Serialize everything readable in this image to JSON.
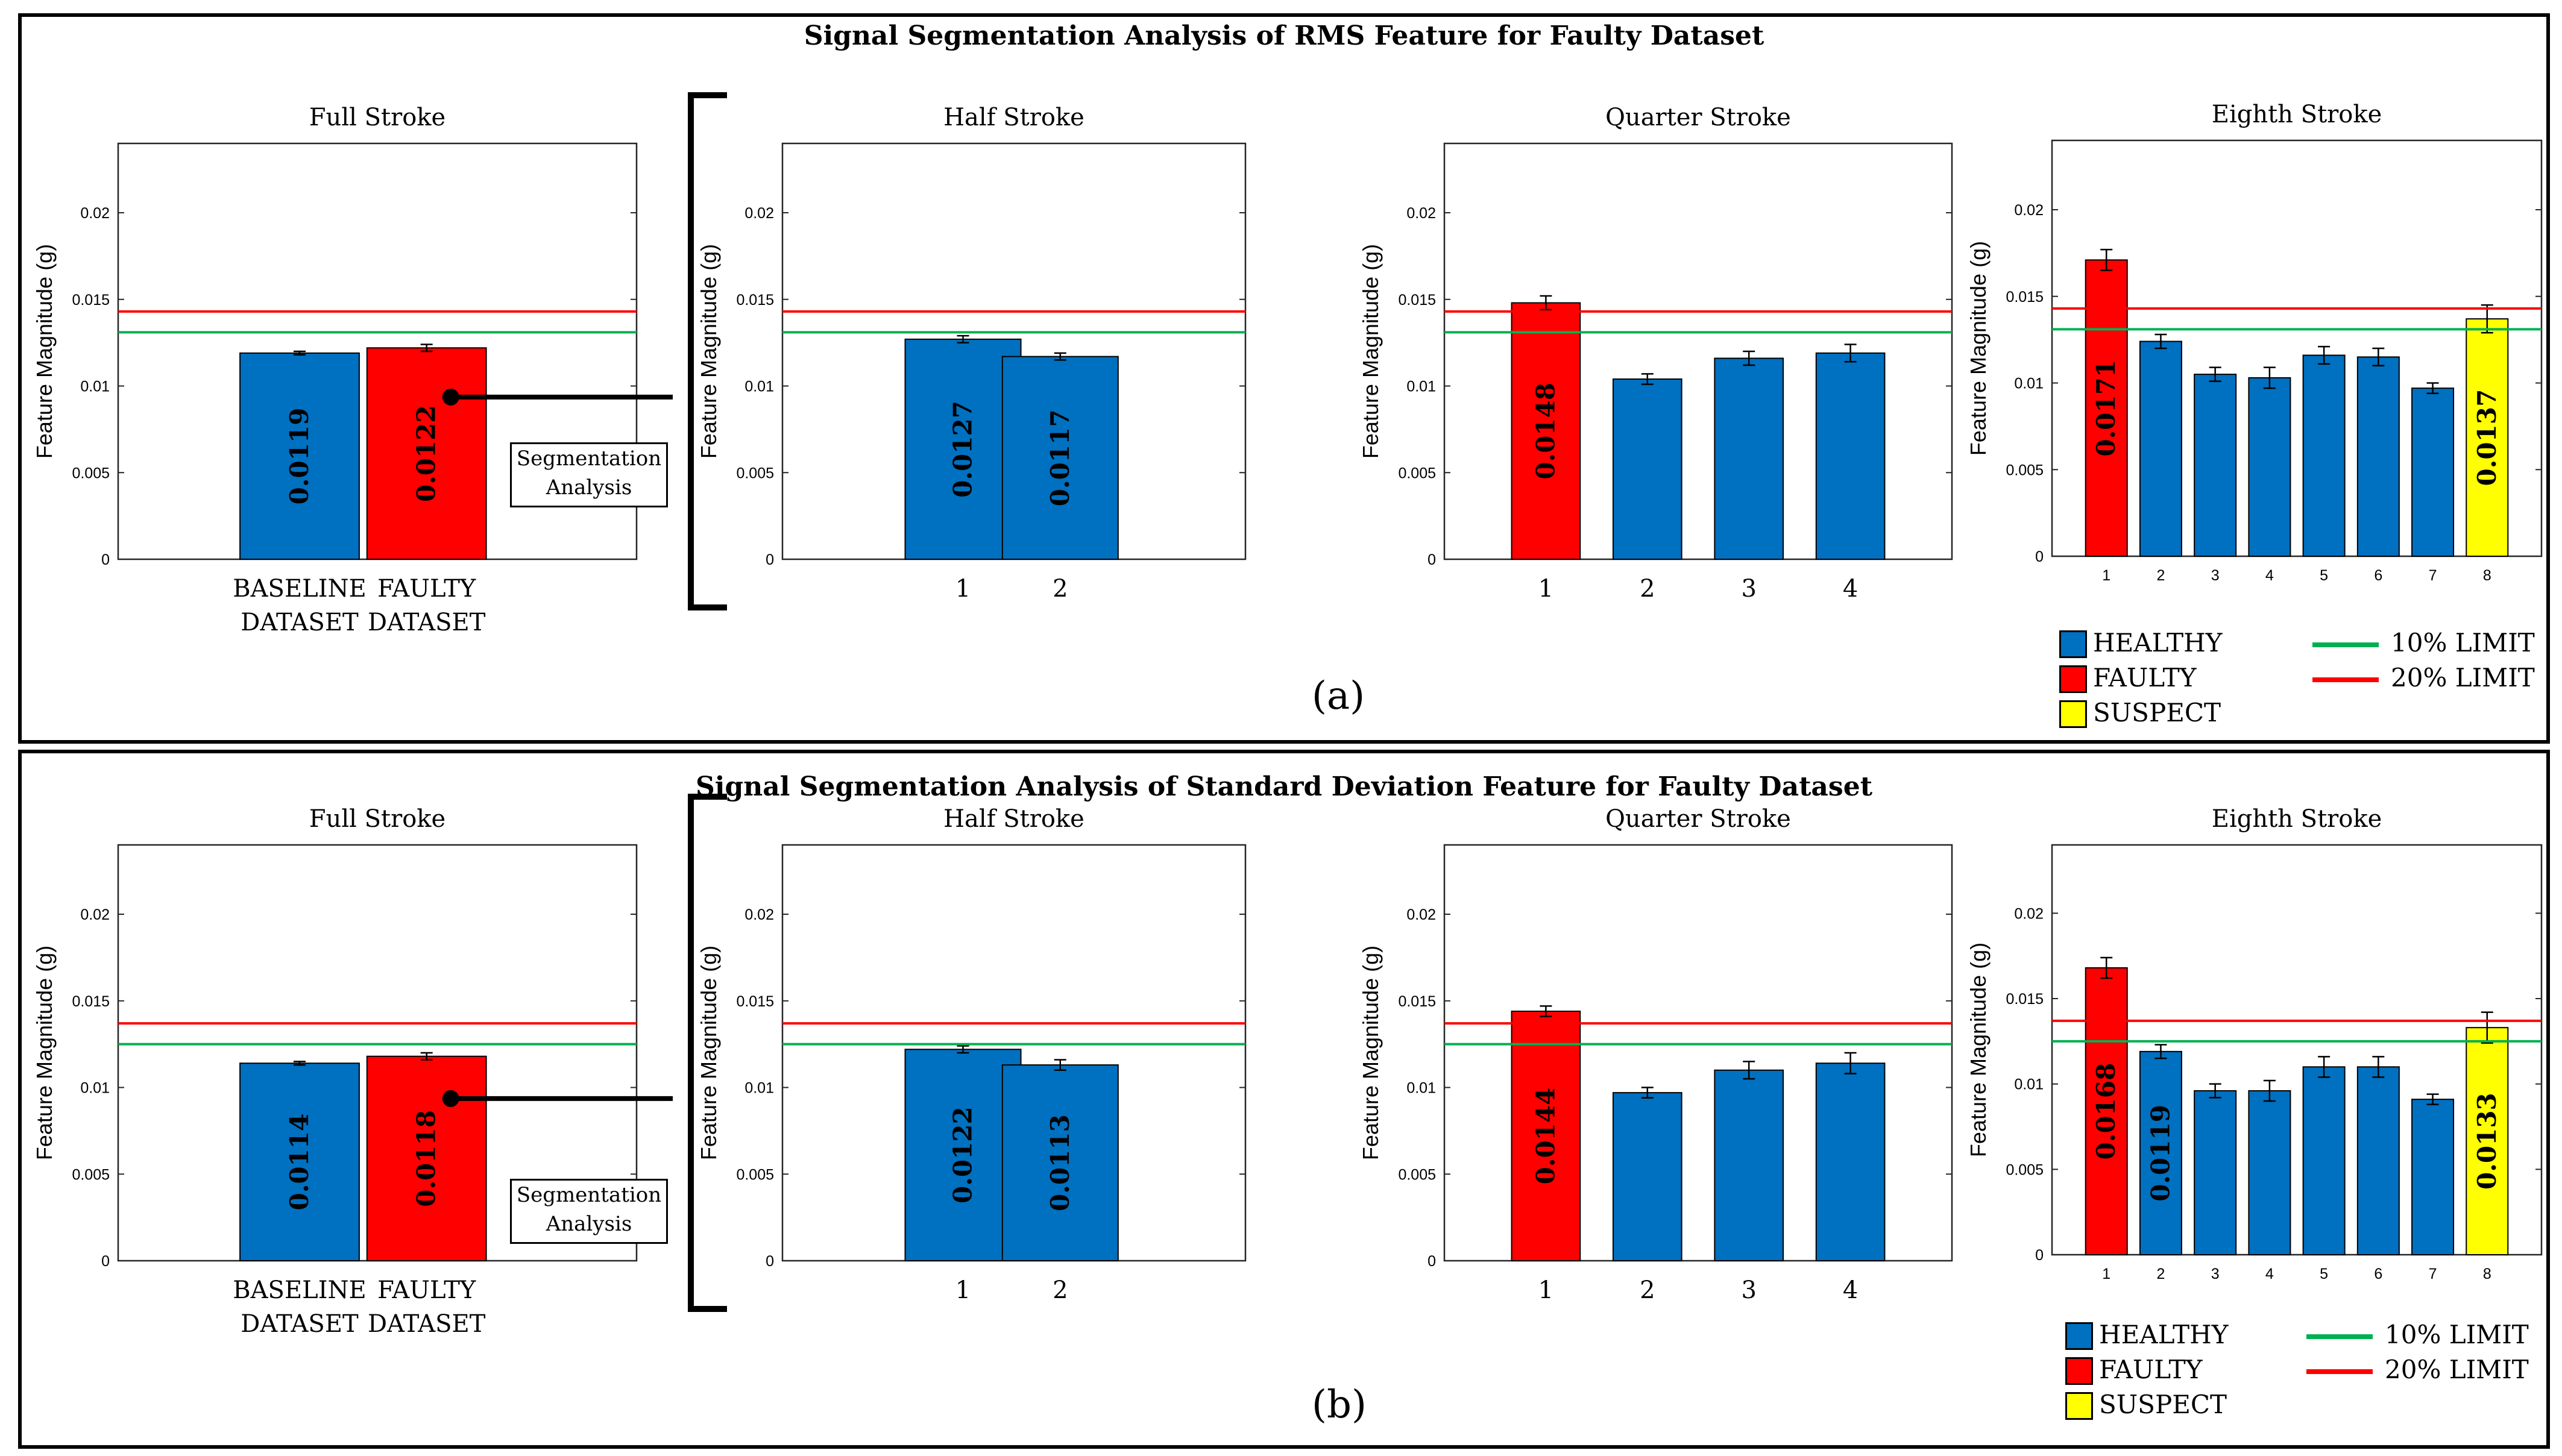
{
  "colors": {
    "healthy": "#0070c0",
    "faulty": "#ff0000",
    "suspect": "#ffff00",
    "limit10": "#00b050",
    "limit20": "#ff0000"
  },
  "y_axis": {
    "label": "Feature Magnitude (g)",
    "ticks": [
      "0",
      "0.005",
      "0.01",
      "0.015",
      "0.02"
    ]
  },
  "segmentation_label": {
    "line1": "Segmentation",
    "line2": "Analysis"
  },
  "legend": {
    "healthy": "HEALTHY",
    "faulty": "FAULTY",
    "suspect": "SUSPECT",
    "limit10": "10% LIMIT",
    "limit20": "20% LIMIT"
  },
  "chart_data": [
    {
      "panel": "(a)",
      "title": "Signal Segmentation Analysis of RMS Feature for Faulty Dataset",
      "type": "bar",
      "limits": {
        "limit10": 0.0131,
        "limit20": 0.0143
      },
      "subplots": [
        {
          "title": "Full Stroke",
          "categories": [
            "BASELINE DATASET",
            "FAULTY DATASET"
          ],
          "values": [
            0.0119,
            0.0122
          ],
          "errors": [
            0.0001,
            0.0002
          ],
          "status": [
            "healthy",
            "faulty"
          ],
          "labels": [
            "0.0119",
            "0.0122"
          ],
          "ylim": [
            0,
            0.024
          ]
        },
        {
          "title": "Half Stroke",
          "categories": [
            "1",
            "2"
          ],
          "values": [
            0.0127,
            0.0117
          ],
          "errors": [
            0.0002,
            0.0002
          ],
          "status": [
            "healthy",
            "healthy"
          ],
          "labels": [
            "0.0127",
            "0.0117"
          ],
          "ylim": [
            0,
            0.024
          ]
        },
        {
          "title": "Quarter Stroke",
          "categories": [
            "1",
            "2",
            "3",
            "4"
          ],
          "values": [
            0.0148,
            0.0104,
            0.0116,
            0.0119
          ],
          "errors": [
            0.0004,
            0.0003,
            0.0004,
            0.0005
          ],
          "status": [
            "faulty",
            "healthy",
            "healthy",
            "healthy"
          ],
          "labels": [
            "0.0148",
            "",
            "",
            ""
          ],
          "ylim": [
            0,
            0.024
          ]
        },
        {
          "title": "Eighth Stroke",
          "categories": [
            "1",
            "2",
            "3",
            "4",
            "5",
            "6",
            "7",
            "8"
          ],
          "values": [
            0.0171,
            0.0124,
            0.0105,
            0.0103,
            0.0116,
            0.0115,
            0.0097,
            0.0137
          ],
          "errors": [
            0.0006,
            0.0004,
            0.0004,
            0.0006,
            0.0005,
            0.0005,
            0.0003,
            0.0008
          ],
          "status": [
            "faulty",
            "healthy",
            "healthy",
            "healthy",
            "healthy",
            "healthy",
            "healthy",
            "suspect"
          ],
          "labels": [
            "0.0171",
            "",
            "",
            "",
            "",
            "",
            "",
            "0.0137"
          ],
          "ylim": [
            0,
            0.024
          ]
        }
      ]
    },
    {
      "panel": "(b)",
      "title": "Signal Segmentation Analysis of Standard Deviation Feature for Faulty Dataset",
      "type": "bar",
      "limits": {
        "limit10": 0.0125,
        "limit20": 0.0137
      },
      "subplots": [
        {
          "title": "Full Stroke",
          "categories": [
            "BASELINE DATASET",
            "FAULTY DATASET"
          ],
          "values": [
            0.0114,
            0.0118
          ],
          "errors": [
            0.0001,
            0.0002
          ],
          "status": [
            "healthy",
            "faulty"
          ],
          "labels": [
            "0.0114",
            "0.0118"
          ],
          "ylim": [
            0,
            0.024
          ]
        },
        {
          "title": "Half Stroke",
          "categories": [
            "1",
            "2"
          ],
          "values": [
            0.0122,
            0.0113
          ],
          "errors": [
            0.0002,
            0.0003
          ],
          "status": [
            "healthy",
            "healthy"
          ],
          "labels": [
            "0.0122",
            "0.0113"
          ],
          "ylim": [
            0,
            0.024
          ]
        },
        {
          "title": "Quarter Stroke",
          "categories": [
            "1",
            "2",
            "3",
            "4"
          ],
          "values": [
            0.0144,
            0.0097,
            0.011,
            0.0114
          ],
          "errors": [
            0.0003,
            0.0003,
            0.0005,
            0.0006
          ],
          "status": [
            "faulty",
            "healthy",
            "healthy",
            "healthy"
          ],
          "labels": [
            "0.0144",
            "",
            "",
            ""
          ],
          "ylim": [
            0,
            0.024
          ]
        },
        {
          "title": "Eighth Stroke",
          "categories": [
            "1",
            "2",
            "3",
            "4",
            "5",
            "6",
            "7",
            "8"
          ],
          "values": [
            0.0168,
            0.0119,
            0.0096,
            0.0096,
            0.011,
            0.011,
            0.0091,
            0.0133
          ],
          "errors": [
            0.0006,
            0.0004,
            0.0004,
            0.0006,
            0.0006,
            0.0006,
            0.0003,
            0.0009
          ],
          "status": [
            "faulty",
            "healthy",
            "healthy",
            "healthy",
            "healthy",
            "healthy",
            "healthy",
            "suspect"
          ],
          "labels": [
            "0.0168",
            "0.0119",
            "",
            "",
            "",
            "",
            "",
            "0.0133"
          ],
          "ylim": [
            0,
            0.024
          ]
        }
      ]
    }
  ]
}
